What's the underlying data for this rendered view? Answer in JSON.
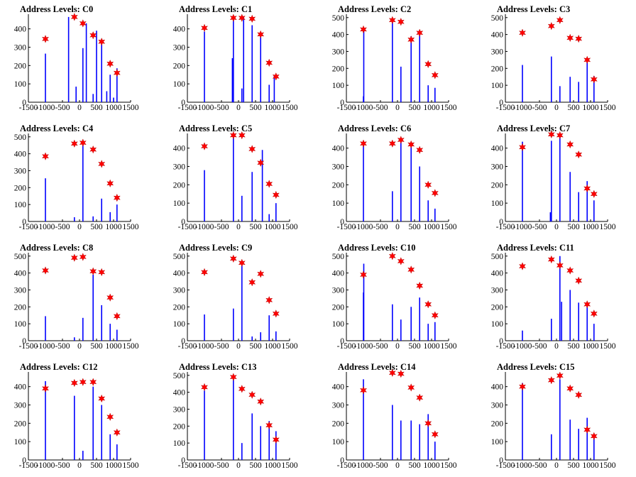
{
  "colors": {
    "background": "#ffffff",
    "axis": "#000000",
    "bar": "#0000ff",
    "marker": "#ff0000",
    "text": "#000000"
  },
  "marker_icon": "star-icon",
  "chart_data": [
    {
      "type": "bar",
      "title": "Address Levels: C0",
      "xlim": [
        -1500,
        1500
      ],
      "ylim": [
        0,
        480
      ],
      "xticks": [
        "-1500",
        "-1000",
        "-500",
        "0",
        "500",
        "1000",
        "1500"
      ],
      "yticks": [
        "0",
        "100",
        "200",
        "300",
        "400"
      ],
      "x": [
        -1000,
        -320,
        -100,
        100,
        200,
        400,
        500,
        650,
        800,
        900,
        1000,
        1100
      ],
      "values": [
        265,
        465,
        85,
        295,
        430,
        45,
        390,
        330,
        60,
        150,
        25,
        185
      ],
      "markers": {
        "x": [
          -1000,
          -150,
          100,
          400,
          650,
          900,
          1100
        ],
        "y": [
          345,
          465,
          430,
          365,
          330,
          210,
          160
        ]
      }
    },
    {
      "type": "bar",
      "title": "Address Levels: C1",
      "xlim": [
        -1500,
        1500
      ],
      "ylim": [
        0,
        480
      ],
      "xticks": [
        "-1500",
        "-1000",
        "-500",
        "0",
        "500",
        "1000",
        "1500"
      ],
      "yticks": [
        "0",
        "100",
        "200",
        "300",
        "400"
      ],
      "x": [
        -1000,
        -180,
        -150,
        100,
        150,
        400,
        650,
        900,
        1050
      ],
      "values": [
        385,
        240,
        465,
        75,
        465,
        420,
        360,
        95,
        145
      ],
      "markers": {
        "x": [
          -1000,
          -150,
          100,
          400,
          650,
          900,
          1100
        ],
        "y": [
          405,
          460,
          460,
          455,
          370,
          215,
          140
        ]
      }
    },
    {
      "type": "bar",
      "title": "Address Levels: C2",
      "xlim": [
        -1500,
        1500
      ],
      "ylim": [
        0,
        520
      ],
      "xticks": [
        "-1500",
        "-1000",
        "-500",
        "0",
        "500",
        "1000",
        "1500"
      ],
      "yticks": [
        "0",
        "100",
        "200",
        "300",
        "400",
        "500"
      ],
      "x": [
        -1000,
        -990,
        -150,
        100,
        400,
        650,
        900,
        1100
      ],
      "values": [
        35,
        430,
        490,
        210,
        390,
        410,
        100,
        85
      ],
      "markers": {
        "x": [
          -1000,
          -150,
          100,
          400,
          650,
          900,
          1100
        ],
        "y": [
          430,
          485,
          475,
          370,
          410,
          225,
          160
        ]
      }
    },
    {
      "type": "bar",
      "title": "Address Levels: C3",
      "xlim": [
        -1500,
        1500
      ],
      "ylim": [
        0,
        520
      ],
      "xticks": [
        "-1500",
        "-1000",
        "-500",
        "0",
        "500",
        "1000",
        "1500"
      ],
      "yticks": [
        "0",
        "100",
        "200",
        "300",
        "400",
        "500"
      ],
      "x": [
        -1000,
        -150,
        100,
        400,
        650,
        900,
        1100
      ],
      "values": [
        220,
        270,
        95,
        150,
        120,
        255,
        155
      ],
      "markers": {
        "x": [
          -1000,
          -150,
          100,
          400,
          650,
          900,
          1100
        ],
        "y": [
          410,
          450,
          485,
          380,
          375,
          250,
          135
        ]
      }
    },
    {
      "type": "bar",
      "title": "Address Levels: C4",
      "xlim": [
        -1500,
        1500
      ],
      "ylim": [
        0,
        520
      ],
      "xticks": [
        "-1500",
        "-1000",
        "-500",
        "0",
        "500",
        "1000",
        "1500"
      ],
      "yticks": [
        "0",
        "100",
        "200",
        "300",
        "400",
        "500"
      ],
      "x": [
        -1000,
        -150,
        100,
        400,
        650,
        900,
        1100
      ],
      "values": [
        255,
        25,
        470,
        30,
        135,
        55,
        100
      ],
      "markers": {
        "x": [
          -1000,
          -150,
          100,
          400,
          650,
          900,
          1100
        ],
        "y": [
          385,
          460,
          465,
          425,
          340,
          225,
          140
        ]
      }
    },
    {
      "type": "bar",
      "title": "Address Levels: C5",
      "xlim": [
        -1500,
        1500
      ],
      "ylim": [
        0,
        480
      ],
      "xticks": [
        "-1500",
        "-1000",
        "-500",
        "0",
        "500",
        "1000",
        "1500"
      ],
      "yticks": [
        "0",
        "100",
        "200",
        "300",
        "400"
      ],
      "x": [
        -1000,
        -150,
        100,
        400,
        700,
        900,
        1100
      ],
      "values": [
        280,
        470,
        140,
        270,
        390,
        40,
        100
      ],
      "markers": {
        "x": [
          -1000,
          -150,
          100,
          400,
          650,
          900,
          1100
        ],
        "y": [
          410,
          470,
          470,
          395,
          320,
          205,
          145
        ]
      }
    },
    {
      "type": "bar",
      "title": "Address Levels: C6",
      "xlim": [
        -1500,
        1500
      ],
      "ylim": [
        0,
        480
      ],
      "xticks": [
        "-1500",
        "-1000",
        "-500",
        "0",
        "500",
        "1000",
        "1500"
      ],
      "yticks": [
        "0",
        "100",
        "200",
        "300",
        "400"
      ],
      "x": [
        -1000,
        -150,
        100,
        400,
        650,
        900,
        1100
      ],
      "values": [
        425,
        165,
        450,
        420,
        300,
        115,
        70
      ],
      "markers": {
        "x": [
          -1000,
          -150,
          100,
          400,
          650,
          900,
          1100
        ],
        "y": [
          425,
          425,
          445,
          420,
          390,
          200,
          155
        ]
      }
    },
    {
      "type": "bar",
      "title": "Address Levels: C7",
      "xlim": [
        -1500,
        1500
      ],
      "ylim": [
        0,
        480
      ],
      "xticks": [
        "-1500",
        "-1000",
        "-500",
        "0",
        "500",
        "1000",
        "1500"
      ],
      "yticks": [
        "0",
        "100",
        "200",
        "300",
        "400"
      ],
      "x": [
        -1000,
        -180,
        -150,
        100,
        400,
        650,
        900,
        1100
      ],
      "values": [
        435,
        50,
        440,
        470,
        270,
        160,
        220,
        115
      ],
      "markers": {
        "x": [
          -1000,
          -150,
          100,
          400,
          650,
          900,
          1100
        ],
        "y": [
          405,
          475,
          470,
          420,
          365,
          180,
          150
        ]
      }
    },
    {
      "type": "bar",
      "title": "Address Levels: C8",
      "xlim": [
        -1500,
        1500
      ],
      "ylim": [
        0,
        520
      ],
      "xticks": [
        "-1500",
        "-1000",
        "-500",
        "0",
        "500",
        "1000",
        "1500"
      ],
      "yticks": [
        "0",
        "100",
        "200",
        "300",
        "400",
        "500"
      ],
      "x": [
        -1000,
        -150,
        100,
        400,
        650,
        900,
        1100
      ],
      "values": [
        145,
        20,
        135,
        390,
        210,
        100,
        65
      ],
      "markers": {
        "x": [
          -1000,
          -150,
          100,
          400,
          650,
          900,
          1100
        ],
        "y": [
          415,
          490,
          495,
          410,
          405,
          255,
          145
        ]
      }
    },
    {
      "type": "bar",
      "title": "Address Levels: C9",
      "xlim": [
        -1500,
        1500
      ],
      "ylim": [
        0,
        520
      ],
      "xticks": [
        "-1500",
        "-1000",
        "-500",
        "0",
        "500",
        "1000",
        "1500"
      ],
      "yticks": [
        "0",
        "100",
        "200",
        "300",
        "400",
        "500"
      ],
      "x": [
        -1000,
        -150,
        100,
        400,
        650,
        900,
        1100
      ],
      "values": [
        155,
        190,
        470,
        25,
        50,
        150,
        55
      ],
      "markers": {
        "x": [
          -1000,
          -150,
          100,
          400,
          650,
          900,
          1100
        ],
        "y": [
          405,
          485,
          460,
          345,
          395,
          240,
          160
        ]
      }
    },
    {
      "type": "bar",
      "title": "Address Levels: C10",
      "xlim": [
        -1500,
        1500
      ],
      "ylim": [
        0,
        520
      ],
      "xticks": [
        "-1500",
        "-1000",
        "-500",
        "0",
        "500",
        "1000",
        "1500"
      ],
      "yticks": [
        "0",
        "100",
        "200",
        "300",
        "400",
        "500"
      ],
      "x": [
        -1000,
        -990,
        -150,
        100,
        400,
        650,
        900,
        1100
      ],
      "values": [
        285,
        455,
        215,
        125,
        200,
        255,
        100,
        110
      ],
      "markers": {
        "x": [
          -1000,
          -150,
          100,
          400,
          650,
          900,
          1100
        ],
        "y": [
          390,
          500,
          470,
          420,
          325,
          215,
          150
        ]
      }
    },
    {
      "type": "bar",
      "title": "Address Levels: C11",
      "xlim": [
        -1500,
        1500
      ],
      "ylim": [
        0,
        520
      ],
      "xticks": [
        "-1500",
        "-1000",
        "-500",
        "0",
        "500",
        "1000",
        "1500"
      ],
      "yticks": [
        "0",
        "100",
        "200",
        "300",
        "400",
        "500"
      ],
      "x": [
        -1000,
        -150,
        100,
        150,
        400,
        650,
        900,
        1100
      ],
      "values": [
        60,
        130,
        500,
        230,
        300,
        225,
        205,
        100
      ],
      "markers": {
        "x": [
          -1000,
          -150,
          100,
          400,
          650,
          900,
          1100
        ],
        "y": [
          440,
          480,
          445,
          415,
          355,
          215,
          160
        ]
      }
    },
    {
      "type": "bar",
      "title": "Address Levels: C12",
      "xlim": [
        -1500,
        1500
      ],
      "ylim": [
        0,
        480
      ],
      "xticks": [
        "-1500",
        "-1000",
        "-500",
        "0",
        "500",
        "1000",
        "1500"
      ],
      "yticks": [
        "0",
        "100",
        "200",
        "300",
        "400"
      ],
      "x": [
        -1000,
        -150,
        100,
        400,
        650,
        900,
        1100
      ],
      "values": [
        430,
        350,
        50,
        400,
        300,
        140,
        85
      ],
      "markers": {
        "x": [
          -1000,
          -150,
          100,
          400,
          650,
          900,
          1100
        ],
        "y": [
          390,
          420,
          425,
          425,
          335,
          235,
          150
        ]
      }
    },
    {
      "type": "bar",
      "title": "Address Levels: C13",
      "xlim": [
        -1500,
        1500
      ],
      "ylim": [
        0,
        520
      ],
      "xticks": [
        "-1500",
        "-1000",
        "-500",
        "0",
        "500",
        "1000",
        "1500"
      ],
      "yticks": [
        "0",
        "100",
        "200",
        "300",
        "400",
        "500"
      ],
      "x": [
        -1000,
        -150,
        100,
        400,
        650,
        900,
        1100
      ],
      "values": [
        410,
        480,
        100,
        275,
        200,
        230,
        170
      ],
      "markers": {
        "x": [
          -1000,
          -150,
          100,
          400,
          650,
          900,
          1100
        ],
        "y": [
          430,
          490,
          420,
          385,
          345,
          205,
          120
        ]
      }
    },
    {
      "type": "bar",
      "title": "Address Levels: C14",
      "xlim": [
        -1500,
        1500
      ],
      "ylim": [
        0,
        480
      ],
      "xticks": [
        "-1500",
        "-1000",
        "-500",
        "0",
        "500",
        "1000",
        "1500"
      ],
      "yticks": [
        "0",
        "100",
        "200",
        "300",
        "400"
      ],
      "x": [
        -1000,
        -150,
        100,
        400,
        650,
        900,
        1100
      ],
      "values": [
        440,
        300,
        215,
        215,
        195,
        250,
        100
      ],
      "markers": {
        "x": [
          -1000,
          -150,
          100,
          400,
          650,
          900,
          1100
        ],
        "y": [
          380,
          475,
          470,
          395,
          340,
          200,
          140
        ]
      }
    },
    {
      "type": "bar",
      "title": "Address Levels: C15",
      "xlim": [
        -1500,
        1500
      ],
      "ylim": [
        0,
        480
      ],
      "xticks": [
        "-1500",
        "-1000",
        "-500",
        "0",
        "500",
        "1000",
        "1500"
      ],
      "yticks": [
        "0",
        "100",
        "200",
        "300",
        "400"
      ],
      "x": [
        -1000,
        -150,
        100,
        400,
        650,
        900,
        1100
      ],
      "values": [
        420,
        140,
        440,
        220,
        170,
        230,
        120
      ],
      "markers": {
        "x": [
          -1000,
          -150,
          100,
          400,
          650,
          900,
          1100
        ],
        "y": [
          400,
          435,
          460,
          390,
          355,
          165,
          130
        ]
      }
    }
  ]
}
